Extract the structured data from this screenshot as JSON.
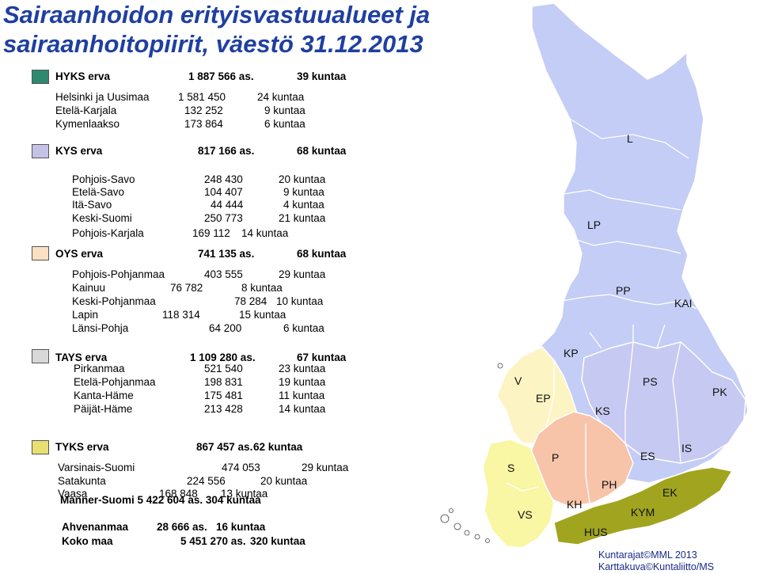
{
  "title": {
    "line1": "Sairaanhoidon erityisvastuualueet ja",
    "line2": "sairaanhoitopiirit, väestö 31.12.2013"
  },
  "colors": {
    "hyks": "#2e8a6e",
    "kys": "#c4c2e6",
    "oys": "#fbe0c2",
    "tays": "#d8d8d8",
    "tyks": "#e8e071",
    "map_north": "#c3cdf5",
    "map_kys": "#c6c9f1",
    "map_tays": "#fcf4c3",
    "map_tyks_s": "#f9f6a4",
    "map_p": "#f7c4aa",
    "map_hyks": "#a0a41f"
  },
  "legend": {
    "hyks": {
      "name": "HYKS erva",
      "population": "1 887 566 as.",
      "municipalities": "39 kuntaa",
      "districts": [
        {
          "name": "Helsinki ja Uusimaa",
          "population": "1 581 450",
          "municipalities": "24 kuntaa"
        },
        {
          "name": "Etelä-Karjala",
          "population": "132 252",
          "municipalities": "9 kuntaa"
        },
        {
          "name": "Kymenlaakso",
          "population": "173 864",
          "municipalities": "6 kuntaa"
        }
      ]
    },
    "kys": {
      "name": "KYS erva",
      "population": "817 166 as.",
      "municipalities": "68 kuntaa",
      "districts": [
        {
          "name": "Pohjois-Savo",
          "population": "248 430",
          "municipalities": "20 kuntaa"
        },
        {
          "name": "Etelä-Savo",
          "population": "104 407",
          "municipalities": "9 kuntaa"
        },
        {
          "name": "Itä-Savo",
          "population": "44 444",
          "municipalities": "4 kuntaa"
        },
        {
          "name": "Keski-Suomi",
          "population": "250 773",
          "municipalities": "21 kuntaa"
        },
        {
          "name": "Pohjois-Karjala",
          "population": "169 112",
          "municipalities": "14 kuntaa"
        }
      ]
    },
    "oys": {
      "name": "OYS erva",
      "population": "741 135 as.",
      "municipalities": "68 kuntaa",
      "districts": [
        {
          "name": "Pohjois-Pohjanmaa",
          "population": "403 555",
          "municipalities": "29 kuntaa"
        },
        {
          "name": "Kainuu",
          "population": "76 782",
          "municipalities": "8 kuntaa"
        },
        {
          "name": "Keski-Pohjanmaa",
          "population": "78 284",
          "municipalities": "10 kuntaa"
        },
        {
          "name": "Lapin",
          "population": "118 314",
          "municipalities": "15 kuntaa"
        },
        {
          "name": "Länsi-Pohja",
          "population": "64 200",
          "municipalities": "6 kuntaa"
        }
      ]
    },
    "tays": {
      "name": "TAYS erva",
      "population": "1 109 280 as.",
      "municipalities": "67 kuntaa",
      "districts": [
        {
          "name": "Pirkanmaa",
          "population": "521 540",
          "municipalities": "23 kuntaa"
        },
        {
          "name": "Etelä-Pohjanmaa",
          "population": "198 831",
          "municipalities": "19 kuntaa"
        },
        {
          "name": "Kanta-Häme",
          "population": "175 481",
          "municipalities": "11 kuntaa"
        },
        {
          "name": "Päijät-Häme",
          "population": "213 428",
          "municipalities": "14 kuntaa"
        }
      ]
    },
    "tyks": {
      "name": "TYKS erva",
      "population": "867 457 as.",
      "municipalities": "62 kuntaa",
      "districts": [
        {
          "name": "Varsinais-Suomi",
          "population": "474 053",
          "municipalities": "29 kuntaa"
        },
        {
          "name": "Satakunta",
          "population": "224 556",
          "municipalities": "20 kuntaa"
        },
        {
          "name": "Vaasa",
          "population": "168 848",
          "municipalities": "13 kuntaa"
        }
      ]
    }
  },
  "totals": {
    "mainland": "Manner-Suomi 5 422 604 as. 304 kuntaa",
    "ahvenanmaa": {
      "name": "Ahvenanmaa",
      "population": "28 666 as.",
      "municipalities": "16 kuntaa"
    },
    "koko_maa": {
      "name": "Koko maa",
      "population": "5 451 270 as.",
      "municipalities": "320 kuntaa"
    }
  },
  "map_labels": {
    "L": "L",
    "LP": "LP",
    "PP": "PP",
    "KAI": "KAI",
    "KP": "KP",
    "V": "V",
    "EP": "EP",
    "KS": "KS",
    "PS": "PS",
    "PK": "PK",
    "S": "S",
    "P": "P",
    "ES": "ES",
    "IS": "IS",
    "PH": "PH",
    "EK": "EK",
    "KH": "KH",
    "VS": "VS",
    "KYM": "KYM",
    "HUS": "HUS"
  },
  "credits": {
    "line1": "Kuntarajat©MML 2013",
    "line2": "Karttakuva©Kuntaliitto/MS"
  }
}
